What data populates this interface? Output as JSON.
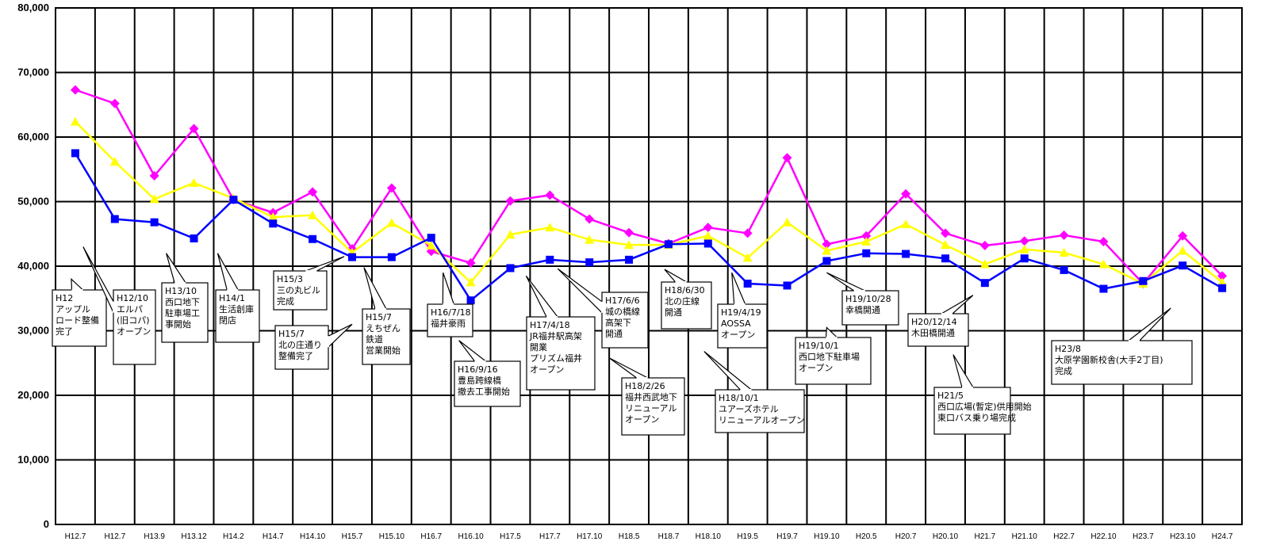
{
  "chart_data": {
    "type": "line",
    "title": "",
    "xlabel": "",
    "ylabel": "",
    "ylim": [
      0,
      80000
    ],
    "yticks": [
      "0",
      "10,000",
      "20,000",
      "30,000",
      "40,000",
      "50,000",
      "60,000",
      "70,000",
      "80,000"
    ],
    "grid": "on",
    "categories": [
      "H12.7",
      "H12.7",
      "H13.9",
      "H13.12",
      "H14.2",
      "H14.7",
      "H14.10",
      "H15.7",
      "H15.10",
      "H16.7",
      "H16.10",
      "H17.5",
      "H17.7",
      "H17.10",
      "H18.5",
      "H18.7",
      "H18.10",
      "H19.5",
      "H19.7",
      "H19.10",
      "H20.5",
      "H20.7",
      "H20.10",
      "H21.7",
      "H21.10",
      "H22.7",
      "H22.10",
      "H23.7",
      "H23.10",
      "H24.7"
    ],
    "series": [
      {
        "color": "#ff00ff",
        "marker": "diamond",
        "values": [
          67300,
          65200,
          54000,
          61300,
          50300,
          48300,
          51500,
          42700,
          52100,
          42300,
          40500,
          50100,
          51000,
          47300,
          45200,
          43500,
          46000,
          45100,
          56800,
          43400,
          44700,
          51200,
          45100,
          43200,
          43900,
          44800,
          43800,
          37300,
          44700,
          38500
        ]
      },
      {
        "color": "#ffff00",
        "marker": "triangle",
        "values": [
          62400,
          56200,
          50400,
          52900,
          50500,
          47600,
          47900,
          42100,
          46700,
          43200,
          37500,
          44900,
          46000,
          44100,
          43300,
          43300,
          44700,
          41300,
          46800,
          42400,
          43800,
          46500,
          43300,
          40300,
          42600,
          42100,
          40300,
          37300,
          42400,
          37500
        ]
      },
      {
        "color": "#0000ff",
        "marker": "square",
        "values": [
          57500,
          47300,
          46800,
          44300,
          50300,
          46600,
          44200,
          41400,
          41400,
          44400,
          34700,
          39700,
          41000,
          40600,
          41000,
          43400,
          43500,
          37300,
          37000,
          40800,
          42000,
          41900,
          41200,
          37400,
          41200,
          39400,
          36500,
          37700,
          40100,
          36600
        ]
      }
    ],
    "annotations": [
      {
        "lines": [
          "H12",
          "アップル",
          "ロード整備",
          "完了"
        ],
        "point_x": 0.4,
        "point_y": 38000
      },
      {
        "lines": [
          "H12/10",
          "エルパ",
          "(旧コパ)",
          "オープン"
        ],
        "point_x": 0.7,
        "point_y": 43000
      },
      {
        "lines": [
          "H13/10",
          "西口地下",
          "駐車場工",
          "事開始"
        ],
        "point_x": 2.8,
        "point_y": 42000
      },
      {
        "lines": [
          "H14/1",
          "生活創庫",
          "閉店"
        ],
        "point_x": 4.1,
        "point_y": 42000
      },
      {
        "lines": [
          "H15/3",
          "三の丸ビル",
          "完成"
        ],
        "point_x": 7.3,
        "point_y": 41500
      },
      {
        "lines": [
          "H15/7",
          "北の庄通り",
          "整備完了"
        ],
        "point_x": 7.5,
        "point_y": 31000
      },
      {
        "lines": [
          "H15/7",
          "えちぜん",
          "鉄道",
          "営業開始"
        ],
        "point_x": 7.8,
        "point_y": 39800
      },
      {
        "lines": [
          "H16/7/18",
          "福井豪雨"
        ],
        "point_x": 9.8,
        "point_y": 39000
      },
      {
        "lines": [
          "H16/9/16",
          "豊島跨線橋",
          "撤去工事開始"
        ],
        "point_x": 10.2,
        "point_y": 28500
      },
      {
        "lines": [
          "H17/4/18",
          "JR福井駅高架",
          "開業",
          "プリズム福井",
          "オープン"
        ],
        "point_x": 11.9,
        "point_y": 38500
      },
      {
        "lines": [
          "H17/6/6",
          "城の橋線",
          "高架下",
          "開通"
        ],
        "point_x": 12.7,
        "point_y": 39600
      },
      {
        "lines": [
          "H18/2/26",
          "福井西武地下",
          "リニューアル",
          "オープン"
        ],
        "point_x": 14.0,
        "point_y": 25800
      },
      {
        "lines": [
          "H18/6/30",
          "北の庄線",
          "開通"
        ],
        "point_x": 15.4,
        "point_y": 39500
      },
      {
        "lines": [
          "H19/4/19",
          "AOSSA",
          "オープン"
        ],
        "point_x": 17.1,
        "point_y": 39000
      },
      {
        "lines": [
          "H18/10/1",
          "ユアーズホテル",
          "リニューアルオープン"
        ],
        "point_x": 16.4,
        "point_y": 26800
      },
      {
        "lines": [
          "H19/10/1",
          "西口地下駐車場",
          "オープン"
        ],
        "point_x": 19.5,
        "point_y": 30500
      },
      {
        "lines": [
          "H19/10/28",
          "幸橋開通"
        ],
        "point_x": 19.5,
        "point_y": 39000
      },
      {
        "lines": [
          "H20/12/14",
          "木田橋開通"
        ],
        "point_x": 23.2,
        "point_y": 35500
      },
      {
        "lines": [
          "H21/5",
          "西口広場(暫定)供用開始",
          "東口バス乗り場完成"
        ],
        "point_x": 22.7,
        "point_y": 26300
      },
      {
        "lines": [
          "H23/8",
          "大原学園新校舎(大手2丁目)",
          "完成"
        ],
        "point_x": 28.2,
        "point_y": 33500
      }
    ]
  },
  "annotation_boxes": [
    {
      "x0": 66,
      "y0": 366,
      "x1": 134,
      "y1": 437
    },
    {
      "x0": 143,
      "y0": 366,
      "x1": 196,
      "y1": 460
    },
    {
      "x0": 204,
      "y0": 357,
      "x1": 262,
      "y1": 432
    },
    {
      "x0": 272,
      "y0": 366,
      "x1": 327,
      "y1": 432
    },
    {
      "x0": 345,
      "y0": 342,
      "x1": 412,
      "y1": 391
    },
    {
      "x0": 347,
      "y0": 411,
      "x1": 414,
      "y1": 466
    },
    {
      "x0": 457,
      "y0": 390,
      "x1": 517,
      "y1": 460
    },
    {
      "x0": 539,
      "y0": 384,
      "x1": 596,
      "y1": 425
    },
    {
      "x0": 573,
      "y0": 456,
      "x1": 656,
      "y1": 513
    },
    {
      "x0": 664,
      "y0": 400,
      "x1": 750,
      "y1": 492
    },
    {
      "x0": 759,
      "y0": 369,
      "x1": 817,
      "y1": 439
    },
    {
      "x0": 784,
      "y0": 477,
      "x1": 863,
      "y1": 549
    },
    {
      "x0": 834,
      "y0": 356,
      "x1": 897,
      "y1": 415
    },
    {
      "x0": 905,
      "y0": 384,
      "x1": 967,
      "y1": 439
    },
    {
      "x0": 902,
      "y0": 492,
      "x1": 1014,
      "y1": 546
    },
    {
      "x0": 1003,
      "y0": 426,
      "x1": 1098,
      "y1": 485
    },
    {
      "x0": 1062,
      "y0": 367,
      "x1": 1133,
      "y1": 410
    },
    {
      "x0": 1145,
      "y0": 396,
      "x1": 1221,
      "y1": 437
    },
    {
      "x0": 1178,
      "y0": 489,
      "x1": 1274,
      "y1": 548
    },
    {
      "x0": 1326,
      "y0": 430,
      "x1": 1503,
      "y1": 485
    }
  ]
}
